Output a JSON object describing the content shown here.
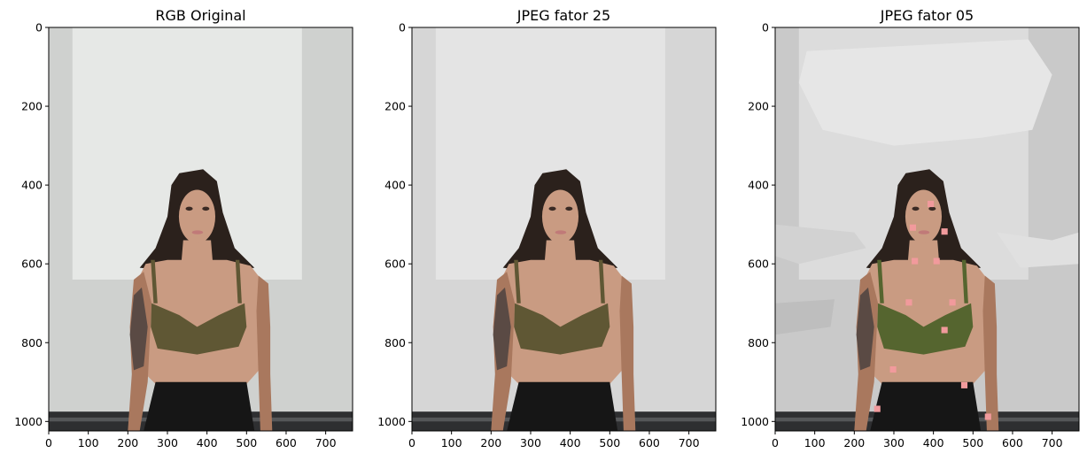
{
  "figure": {
    "panels": [
      {
        "title": "RGB Original",
        "variant": "original"
      },
      {
        "title": "JPEG fator 25",
        "variant": "q25"
      },
      {
        "title": "JPEG fator 05",
        "variant": "q05"
      }
    ]
  },
  "chart_data": [
    {
      "type": "image",
      "title": "RGB Original",
      "xlabel": "",
      "ylabel": "",
      "xlim": [
        0,
        768
      ],
      "ylim": [
        1024,
        0
      ],
      "xticks": [
        0,
        100,
        200,
        300,
        400,
        500,
        600,
        700
      ],
      "yticks": [
        0,
        200,
        400,
        600,
        800,
        1000
      ],
      "grid": false
    },
    {
      "type": "image",
      "title": "JPEG fator 25",
      "xlabel": "",
      "ylabel": "",
      "xlim": [
        0,
        768
      ],
      "ylim": [
        1024,
        0
      ],
      "xticks": [
        0,
        100,
        200,
        300,
        400,
        500,
        600,
        700
      ],
      "yticks": [
        0,
        200,
        400,
        600,
        800,
        1000
      ],
      "grid": false
    },
    {
      "type": "image",
      "title": "JPEG fator 05",
      "xlabel": "",
      "ylabel": "",
      "xlim": [
        0,
        768
      ],
      "ylim": [
        1024,
        0
      ],
      "xticks": [
        0,
        100,
        200,
        300,
        400,
        500,
        600,
        700
      ],
      "yticks": [
        0,
        200,
        400,
        600,
        800,
        1000
      ],
      "grid": false
    }
  ],
  "colors": {
    "wall_light": "#e6e8e6",
    "wall_shadow": "#cfd1cf",
    "floor_dark": "#2e2f31",
    "hair": "#2b211c",
    "skin": "#c99b82",
    "skin_shadow": "#a9785e",
    "top": "#5f5734",
    "top_q05": "#55652f",
    "pants": "#161616",
    "tattoo": "#5a4a44",
    "lips": "#c07a78",
    "block_artifact": "#f19a9c"
  }
}
